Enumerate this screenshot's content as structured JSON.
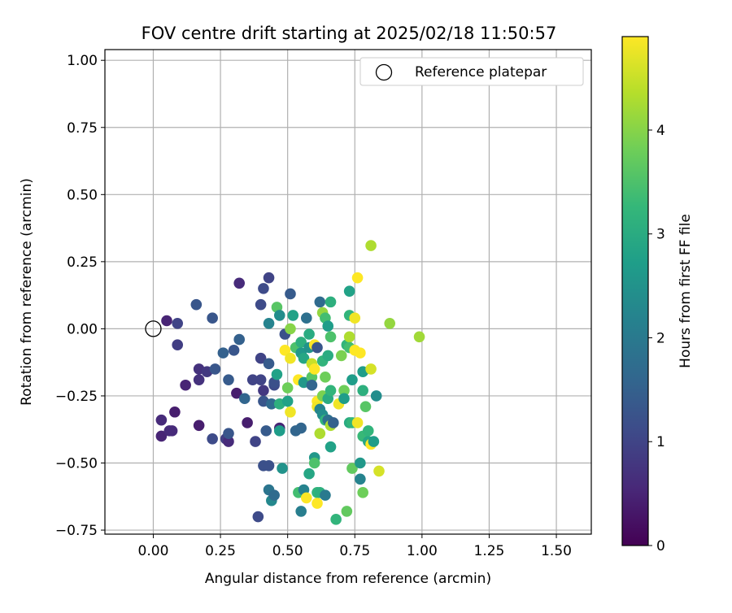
{
  "chart_data": {
    "type": "scatter",
    "title": "FOV centre drift starting at 2025/02/18 11:50:57",
    "xlabel": "Angular distance from reference (arcmin)",
    "ylabel": "Rotation from reference (arcmin)",
    "xlim": [
      -0.18,
      1.63
    ],
    "ylim": [
      -0.765,
      1.04
    ],
    "xticks": [
      0.0,
      0.25,
      0.5,
      0.75,
      1.0,
      1.25,
      1.5
    ],
    "xtick_labels": [
      "0.00",
      "0.25",
      "0.50",
      "0.75",
      "1.00",
      "1.25",
      "1.50"
    ],
    "yticks": [
      -0.75,
      -0.5,
      -0.25,
      0.0,
      0.25,
      0.5,
      0.75,
      1.0
    ],
    "ytick_labels": [
      "−0.75",
      "−0.50",
      "−0.25",
      "0.00",
      "0.25",
      "0.50",
      "0.75",
      "1.00"
    ],
    "grid": true,
    "legend": {
      "position": "top-right",
      "entries": [
        {
          "label": "Reference platepar",
          "marker": "open-circle"
        }
      ]
    },
    "reference": {
      "x": 0.0,
      "y": 0.0
    },
    "colorbar": {
      "label": "Hours from first FF file",
      "colormap": "viridis",
      "range": [
        0,
        4.9
      ],
      "ticks": [
        0,
        1,
        2,
        3,
        4
      ],
      "tick_labels": [
        "0",
        "1",
        "2",
        "3",
        "4"
      ]
    },
    "series": [
      {
        "points": [
          [
            0.05,
            0.03,
            0.5
          ],
          [
            0.09,
            0.02,
            1.0
          ],
          [
            0.09,
            -0.06,
            0.9
          ],
          [
            0.03,
            -0.34,
            0.6
          ],
          [
            0.03,
            -0.4,
            0.5
          ],
          [
            0.07,
            -0.38,
            0.6
          ],
          [
            0.06,
            -0.38,
            0.6
          ],
          [
            0.08,
            -0.31,
            0.4
          ],
          [
            0.12,
            -0.21,
            0.5
          ],
          [
            0.16,
            0.09,
            1.3
          ],
          [
            0.17,
            -0.15,
            0.7
          ],
          [
            0.17,
            -0.19,
            0.7
          ],
          [
            0.17,
            -0.36,
            0.4
          ],
          [
            0.2,
            -0.16,
            0.8
          ],
          [
            0.22,
            0.04,
            1.3
          ],
          [
            0.23,
            -0.15,
            1.3
          ],
          [
            0.22,
            -0.41,
            1.1
          ],
          [
            0.26,
            -0.09,
            1.5
          ],
          [
            0.27,
            -0.41,
            0.9
          ],
          [
            0.28,
            -0.42,
            0.6
          ],
          [
            0.28,
            -0.39,
            1.3
          ],
          [
            0.28,
            -0.19,
            1.4
          ],
          [
            0.3,
            -0.08,
            1.3
          ],
          [
            0.31,
            -0.24,
            0.4
          ],
          [
            0.32,
            0.17,
            0.6
          ],
          [
            0.32,
            -0.04,
            1.5
          ],
          [
            0.34,
            -0.26,
            1.6
          ],
          [
            0.35,
            -0.35,
            0.4
          ],
          [
            0.37,
            -0.19,
            1.0
          ],
          [
            0.38,
            -0.42,
            1.0
          ],
          [
            0.39,
            -0.7,
            1.1
          ],
          [
            0.4,
            0.09,
            1.1
          ],
          [
            0.41,
            0.15,
            1.1
          ],
          [
            0.4,
            -0.11,
            1.0
          ],
          [
            0.4,
            -0.19,
            1.0
          ],
          [
            0.41,
            -0.23,
            0.8
          ],
          [
            0.41,
            -0.27,
            1.3
          ],
          [
            0.41,
            -0.51,
            1.2
          ],
          [
            0.42,
            -0.38,
            1.4
          ],
          [
            0.43,
            0.02,
            2.2
          ],
          [
            0.43,
            0.19,
            1.0
          ],
          [
            0.43,
            -0.13,
            1.4
          ],
          [
            0.43,
            -0.51,
            1.2
          ],
          [
            0.43,
            -0.6,
            1.9
          ],
          [
            0.44,
            -0.28,
            1.7
          ],
          [
            0.44,
            -0.64,
            2.3
          ],
          [
            0.45,
            -0.62,
            1.7
          ],
          [
            0.45,
            -0.21,
            1.1
          ],
          [
            0.45,
            -0.2,
            1.2
          ],
          [
            0.46,
            0.08,
            3.6
          ],
          [
            0.46,
            -0.17,
            2.8
          ],
          [
            0.47,
            0.05,
            2.4
          ],
          [
            0.47,
            -0.37,
            0.5
          ],
          [
            0.47,
            -0.38,
            2.7
          ],
          [
            0.47,
            -0.28,
            3.1
          ],
          [
            0.48,
            -0.52,
            2.5
          ],
          [
            0.49,
            -0.08,
            4.9
          ],
          [
            0.49,
            -0.02,
            1.2
          ],
          [
            0.5,
            -0.22,
            3.8
          ],
          [
            0.5,
            -0.27,
            2.8
          ],
          [
            0.51,
            0.13,
            1.4
          ],
          [
            0.51,
            0.0,
            4.0
          ],
          [
            0.51,
            -0.11,
            4.8
          ],
          [
            0.51,
            -0.31,
            4.8
          ],
          [
            0.52,
            0.05,
            2.8
          ],
          [
            0.53,
            -0.07,
            3.5
          ],
          [
            0.53,
            -0.38,
            1.6
          ],
          [
            0.54,
            -0.61,
            3.4
          ],
          [
            0.54,
            -0.19,
            4.9
          ],
          [
            0.55,
            -0.68,
            2.1
          ],
          [
            0.55,
            -0.09,
            2.6
          ],
          [
            0.55,
            -0.05,
            3.1
          ],
          [
            0.55,
            -0.37,
            1.6
          ],
          [
            0.56,
            -0.11,
            2.9
          ],
          [
            0.56,
            -0.2,
            2.6
          ],
          [
            0.56,
            -0.6,
            2.2
          ],
          [
            0.57,
            0.04,
            1.8
          ],
          [
            0.57,
            -0.63,
            4.9
          ],
          [
            0.58,
            -0.54,
            2.9
          ],
          [
            0.58,
            -0.02,
            3.0
          ],
          [
            0.58,
            -0.07,
            2.5
          ],
          [
            0.59,
            -0.13,
            4.5
          ],
          [
            0.59,
            -0.18,
            3.6
          ],
          [
            0.59,
            -0.21,
            1.6
          ],
          [
            0.6,
            -0.06,
            4.9
          ],
          [
            0.6,
            -0.15,
            4.9
          ],
          [
            0.6,
            -0.48,
            2.6
          ],
          [
            0.6,
            -0.5,
            3.5
          ],
          [
            0.61,
            -0.07,
            1.3
          ],
          [
            0.61,
            -0.27,
            4.9
          ],
          [
            0.61,
            -0.29,
            4.8
          ],
          [
            0.61,
            -0.61,
            3.2
          ],
          [
            0.61,
            -0.65,
            4.9
          ],
          [
            0.62,
            0.1,
            1.7
          ],
          [
            0.62,
            -0.3,
            2.2
          ],
          [
            0.62,
            -0.39,
            4.3
          ],
          [
            0.62,
            -0.61,
            3.1
          ],
          [
            0.63,
            0.06,
            4.1
          ],
          [
            0.63,
            -0.12,
            3.2
          ],
          [
            0.63,
            -0.25,
            3.9
          ],
          [
            0.63,
            -0.32,
            2.4
          ],
          [
            0.64,
            0.04,
            3.4
          ],
          [
            0.64,
            -0.18,
            3.8
          ],
          [
            0.64,
            -0.34,
            3.2
          ],
          [
            0.64,
            -0.62,
            2.0
          ],
          [
            0.65,
            0.01,
            2.7
          ],
          [
            0.65,
            -0.1,
            3.0
          ],
          [
            0.65,
            -0.26,
            3.0
          ],
          [
            0.65,
            -0.34,
            1.8
          ],
          [
            0.66,
            0.1,
            3.1
          ],
          [
            0.66,
            -0.03,
            3.5
          ],
          [
            0.66,
            -0.23,
            3.2
          ],
          [
            0.66,
            -0.36,
            4.3
          ],
          [
            0.66,
            -0.44,
            2.8
          ],
          [
            0.67,
            -0.35,
            1.5
          ],
          [
            0.68,
            -0.71,
            3.2
          ],
          [
            0.69,
            -0.28,
            4.8
          ],
          [
            0.7,
            -0.1,
            3.9
          ],
          [
            0.71,
            -0.23,
            3.8
          ],
          [
            0.71,
            -0.26,
            2.7
          ],
          [
            0.72,
            -0.06,
            3.2
          ],
          [
            0.72,
            -0.68,
            3.7
          ],
          [
            0.73,
            0.14,
            2.8
          ],
          [
            0.73,
            0.05,
            3.2
          ],
          [
            0.73,
            -0.03,
            4.3
          ],
          [
            0.73,
            -0.07,
            3.4
          ],
          [
            0.73,
            -0.35,
            3.0
          ],
          [
            0.74,
            -0.52,
            3.7
          ],
          [
            0.74,
            -0.19,
            2.7
          ],
          [
            0.74,
            -0.35,
            3.2
          ],
          [
            0.75,
            0.04,
            4.8
          ],
          [
            0.75,
            -0.08,
            4.9
          ],
          [
            0.76,
            0.19,
            4.9
          ],
          [
            0.76,
            -0.35,
            4.8
          ],
          [
            0.77,
            -0.09,
            4.9
          ],
          [
            0.77,
            -0.5,
            2.6
          ],
          [
            0.77,
            -0.56,
            2.2
          ],
          [
            0.78,
            -0.16,
            2.7
          ],
          [
            0.78,
            -0.23,
            3.1
          ],
          [
            0.78,
            -0.4,
            3.3
          ],
          [
            0.78,
            -0.61,
            3.8
          ],
          [
            0.79,
            -0.29,
            3.6
          ],
          [
            0.8,
            -0.38,
            3.2
          ],
          [
            0.8,
            -0.42,
            2.9
          ],
          [
            0.81,
            -0.15,
            4.6
          ],
          [
            0.81,
            -0.43,
            4.9
          ],
          [
            0.81,
            0.31,
            4.3
          ],
          [
            0.83,
            -0.25,
            2.4
          ],
          [
            0.82,
            -0.42,
            2.7
          ],
          [
            0.84,
            -0.53,
            4.6
          ],
          [
            0.88,
            0.02,
            4.1
          ],
          [
            0.99,
            -0.03,
            4.2
          ]
        ]
      }
    ]
  }
}
